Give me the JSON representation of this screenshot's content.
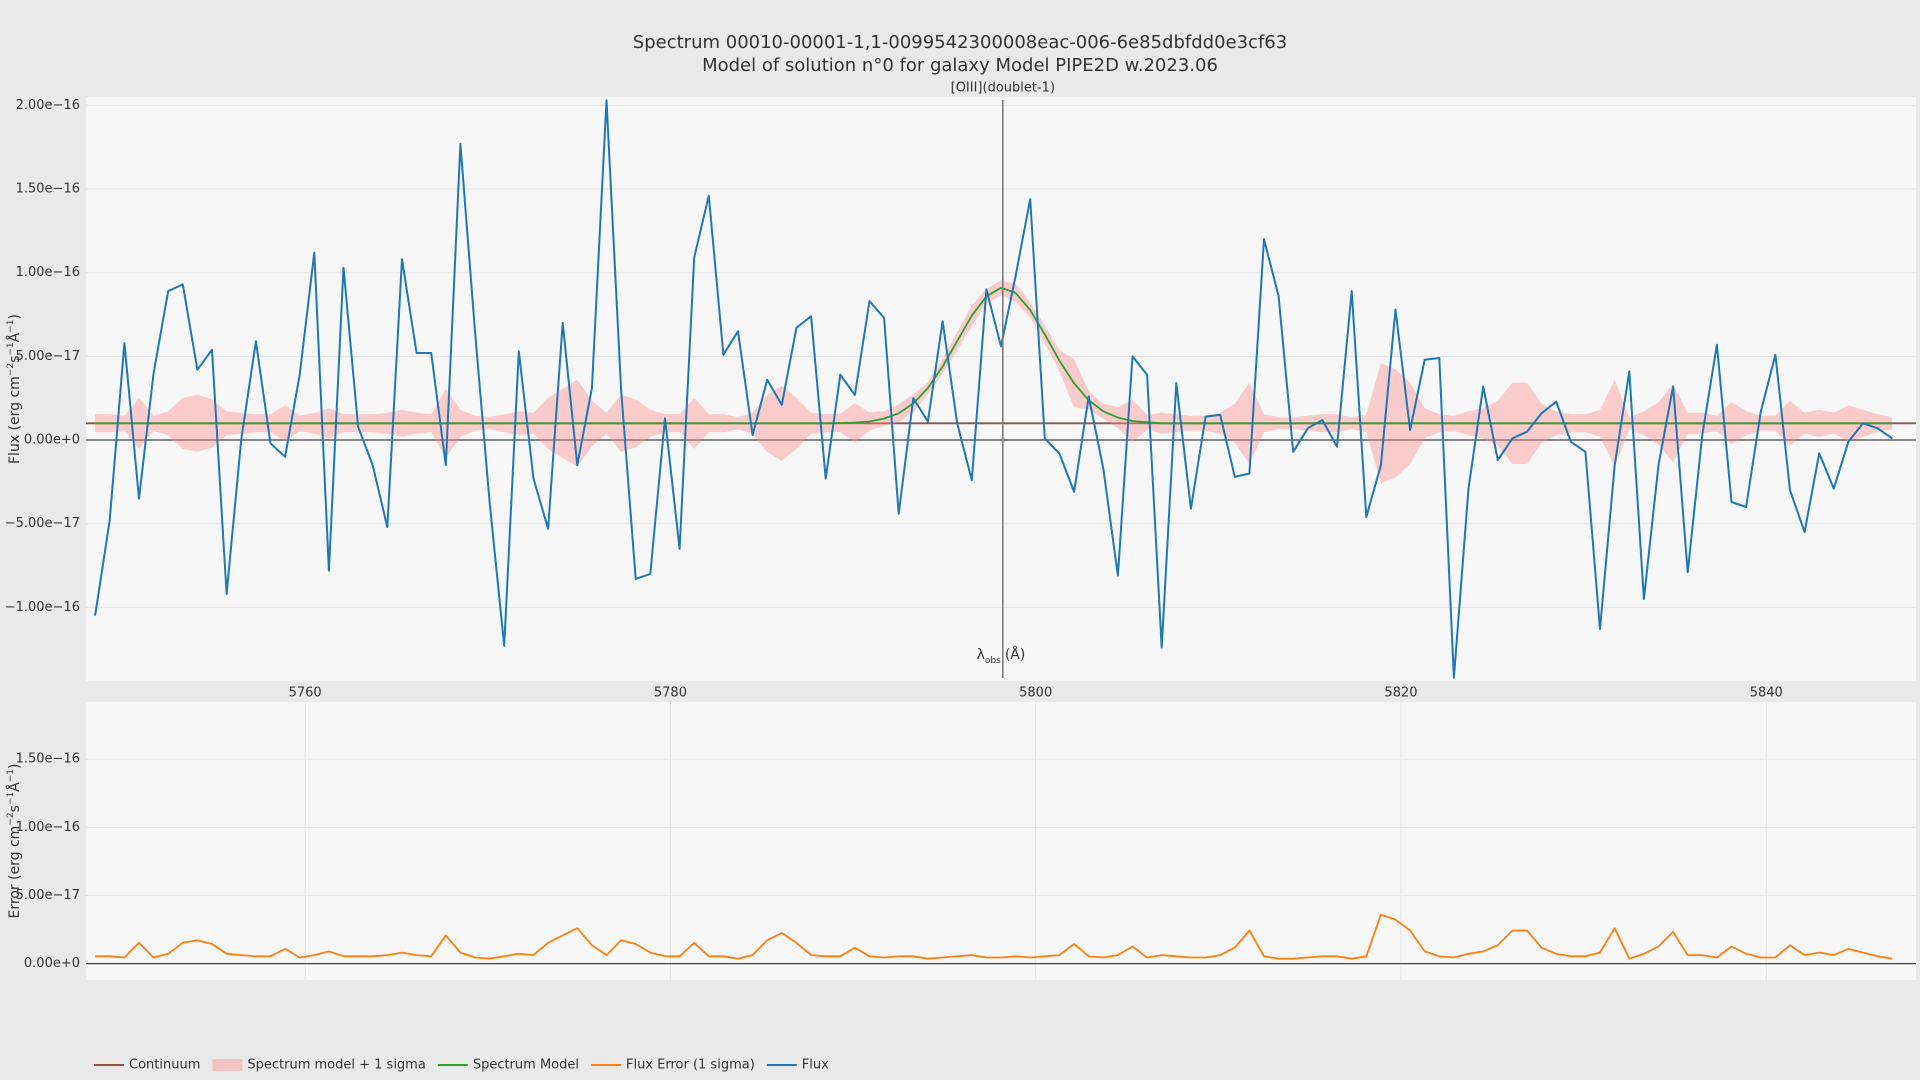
{
  "chart_data": {
    "type": "line",
    "title": "Spectrum 00010-00001-1,1-0099542300008eac-006-6e85dbfdd0e3cf63",
    "subtitle": "Model of solution n°0 for galaxy Model PIPE2D w.2023.06",
    "xlabel": "λ",
    "xlabel_sub": "obs",
    "xlabel_unit": "(Å)",
    "xlim": [
      5748.0,
      5848.2
    ],
    "xticks": [
      5760,
      5780,
      5800,
      5820,
      5840
    ],
    "legend": "bottom-left",
    "annotations": [
      {
        "x": 5798.2,
        "text": "[OIII](doublet-1)"
      }
    ],
    "x": [
      5748.5,
      5749.3,
      5750.1,
      5750.9,
      5751.7,
      5752.5,
      5753.3,
      5754.1,
      5754.9,
      5755.7,
      5756.5,
      5757.3,
      5758.1,
      5758.9,
      5759.7,
      5760.5,
      5761.3,
      5762.1,
      5762.9,
      5763.7,
      5764.5,
      5765.3,
      5766.1,
      5766.9,
      5767.7,
      5768.5,
      5769.3,
      5770.1,
      5770.9,
      5771.7,
      5772.5,
      5773.3,
      5774.1,
      5774.9,
      5775.7,
      5776.5,
      5777.3,
      5778.1,
      5778.9,
      5779.7,
      5780.5,
      5781.3,
      5782.1,
      5782.9,
      5783.7,
      5784.5,
      5785.3,
      5786.1,
      5786.9,
      5787.7,
      5788.5,
      5789.3,
      5790.1,
      5790.9,
      5791.7,
      5792.5,
      5793.3,
      5794.1,
      5794.9,
      5795.7,
      5796.5,
      5797.3,
      5798.1,
      5798.9,
      5799.7,
      5800.5,
      5801.3,
      5802.1,
      5802.9,
      5803.7,
      5804.5,
      5805.3,
      5806.1,
      5806.9,
      5807.7,
      5808.5,
      5809.3,
      5810.1,
      5810.9,
      5811.7,
      5812.5,
      5813.3,
      5814.1,
      5814.9,
      5815.7,
      5816.5,
      5817.3,
      5818.1,
      5818.9,
      5819.7,
      5820.5,
      5821.3,
      5822.1,
      5822.9,
      5823.7,
      5824.5,
      5825.3,
      5826.1,
      5826.9,
      5827.7,
      5828.5,
      5829.3,
      5830.1,
      5830.9,
      5831.7,
      5832.5,
      5833.3,
      5834.1,
      5834.9,
      5835.7,
      5836.5,
      5837.3,
      5838.1,
      5838.9,
      5839.7,
      5840.5,
      5841.3,
      5842.1,
      5842.9,
      5843.7,
      5844.5,
      5845.3,
      5846.1,
      5846.9
    ],
    "panels": [
      {
        "ylabel": [
          {
            "text": "Flux (erg cm"
          },
          {
            "text": "−2",
            "sup": true
          },
          {
            "text": "s"
          },
          {
            "text": "−1",
            "sup": true
          },
          {
            "text": "Å"
          },
          {
            "text": "−1",
            "sup": true
          },
          {
            "text": ")"
          }
        ],
        "ylim": [
          -1.44e-16,
          2.05e-16
        ],
        "yticks": [
          {
            "value": -1e-16,
            "label": "−1.00e−16"
          },
          {
            "value": -5e-17,
            "label": "−5.00e−17"
          },
          {
            "value": 0,
            "label": "0.00e+0"
          },
          {
            "value": 5e-17,
            "label": "5.00e−17"
          },
          {
            "value": 1e-16,
            "label": "1.00e−16"
          },
          {
            "value": 1.5e-16,
            "label": "1.50e−16"
          },
          {
            "value": 2e-16,
            "label": "2.00e−16"
          }
        ],
        "ygrid": true,
        "xgrid": false,
        "xticklabels": true,
        "series": [
          {
            "name": "Continuum",
            "kind": "continuum",
            "color": "#8c564b",
            "x": [
              5748.0,
              5848.2
            ],
            "values": [
              1e-17,
              1e-17
            ]
          },
          {
            "name": "Spectrum model + 1 sigma",
            "kind": "band",
            "color": "#ff8a8a"
          },
          {
            "name": "Spectrum Model",
            "kind": "model",
            "color": "#2ca02c",
            "values": [
              1e-17,
              1e-17,
              1e-17,
              1e-17,
              1e-17,
              1e-17,
              1e-17,
              1e-17,
              1e-17,
              1e-17,
              1e-17,
              1e-17,
              1e-17,
              1e-17,
              1e-17,
              1e-17,
              1e-17,
              1e-17,
              1e-17,
              1e-17,
              1e-17,
              1e-17,
              1e-17,
              1e-17,
              1e-17,
              1e-17,
              1e-17,
              1e-17,
              1e-17,
              1e-17,
              1e-17,
              1e-17,
              1e-17,
              1e-17,
              1e-17,
              1e-17,
              1e-17,
              1e-17,
              1e-17,
              1e-17,
              1e-17,
              1e-17,
              1e-17,
              1e-17,
              1e-17,
              1e-17,
              1e-17,
              1e-17,
              1e-17,
              1e-17,
              1e-17,
              1.02e-17,
              1.04e-17,
              1.11e-17,
              1.28e-17,
              1.6e-17,
              2.19e-17,
              3.11e-17,
              4.39e-17,
              5.91e-17,
              7.43e-17,
              8.59e-17,
              9.1e-17,
              8.79e-17,
              7.77e-17,
              6.31e-17,
              4.75e-17,
              3.39e-17,
              2.38e-17,
              1.72e-17,
              1.34e-17,
              1.14e-17,
              1.06e-17,
              1e-17,
              1e-17,
              1e-17,
              1e-17,
              1e-17,
              1e-17,
              1e-17,
              1e-17,
              1e-17,
              1e-17,
              1e-17,
              1e-17,
              1e-17,
              1e-17,
              1e-17,
              1e-17,
              1e-17,
              1e-17,
              1e-17,
              1e-17,
              1e-17,
              1e-17,
              1e-17,
              1e-17,
              1e-17,
              1e-17,
              1e-17,
              1e-17,
              1e-17,
              1e-17,
              1e-17,
              1e-17,
              1e-17,
              1e-17,
              1e-17,
              1e-17,
              1e-17,
              1e-17,
              1e-17,
              1e-17,
              1e-17,
              1e-17,
              1e-17,
              1e-17,
              1e-17,
              1e-17,
              1e-17,
              1e-17,
              1e-17,
              1e-17,
              1e-17
            ]
          },
          {
            "name": "Flux",
            "kind": "flux",
            "color": "#1f77b4",
            "values": [
              -1.05e-16,
              -4.8e-17,
              5.8e-17,
              -3.5e-17,
              4e-17,
              8.9e-17,
              9.3e-17,
              4.2e-17,
              5.4e-17,
              -9.2e-17,
              0,
              5.9e-17,
              -2e-18,
              -1e-17,
              3.9e-17,
              1.12e-16,
              -7.8e-17,
              1.03e-16,
              8e-18,
              -1.5e-17,
              -5.2e-17,
              1.08e-16,
              5.2e-17,
              5.2e-17,
              -1.5e-17,
              1.77e-16,
              6.5e-17,
              -3.7e-17,
              -1.23e-16,
              5.3e-17,
              -2.3e-17,
              -5.3e-17,
              7e-17,
              -1.5e-17,
              3.1e-17,
              2.03e-16,
              3e-17,
              -8.3e-17,
              -8e-17,
              1.3e-17,
              -6.5e-17,
              1.09e-16,
              1.46e-16,
              5.1e-17,
              6.5e-17,
              3e-18,
              3.6e-17,
              2.1e-17,
              6.7e-17,
              7.4e-17,
              -2.3e-17,
              3.9e-17,
              2.7e-17,
              8.3e-17,
              7.3e-17,
              -4.4e-17,
              2.5e-17,
              1.1e-17,
              7.1e-17,
              1e-17,
              -2.4e-17,
              9e-17,
              5.6e-17,
              9.8e-17,
              1.44e-16,
              1e-18,
              -8e-18,
              -3.1e-17,
              2.6e-17,
              -1.7e-17,
              -8.1e-17,
              5e-17,
              3.9e-17,
              -1.24e-16,
              3.4e-17,
              -4.1e-17,
              1.4e-17,
              1.5e-17,
              -2.2e-17,
              -2e-17,
              1.2e-16,
              8.6e-17,
              -7e-18,
              7e-18,
              1.2e-17,
              -4e-18,
              8.9e-17,
              -4.6e-17,
              -1.5e-17,
              7.8e-17,
              6e-18,
              4.8e-17,
              4.9e-17,
              -1.42e-16,
              -2.9e-17,
              3.2e-17,
              -1.2e-17,
              1e-18,
              5e-18,
              1.6e-17,
              2.3e-17,
              -1e-18,
              -7e-18,
              -1.13e-16,
              -1.5e-17,
              4.1e-17,
              -9.5e-17,
              -1.5e-17,
              3.2e-17,
              -7.9e-17,
              3e-18,
              5.7e-17,
              -3.7e-17,
              -4e-17,
              1.7e-17,
              5.1e-17,
              -3e-17,
              -5.5e-17,
              -8e-18,
              -2.9e-17,
              -1e-18,
              1e-17,
              7e-18,
              1e-18
            ]
          }
        ]
      },
      {
        "ylabel": [
          {
            "text": "Error (erg cm"
          },
          {
            "text": "−2",
            "sup": true
          },
          {
            "text": "s"
          },
          {
            "text": "−1",
            "sup": true
          },
          {
            "text": "Å"
          },
          {
            "text": "−1",
            "sup": true
          },
          {
            "text": ")"
          }
        ],
        "ylim": [
          -1.2e-17,
          1.92e-16
        ],
        "yticks": [
          {
            "value": 0,
            "label": "0.00e+0"
          },
          {
            "value": 5e-17,
            "label": "5.00e−17"
          },
          {
            "value": 1e-16,
            "label": "1.00e−16"
          },
          {
            "value": 1.5e-16,
            "label": "1.50e−16"
          }
        ],
        "ygrid": true,
        "xgrid": true,
        "xticklabels": false,
        "series": [
          {
            "name": "Flux Error (1 sigma)",
            "kind": "error",
            "color": "#ff7f0e",
            "values": [
              5.4e-18,
              5.4e-18,
              4.5e-18,
              1.53e-17,
              4.5e-18,
              7.2e-18,
              1.53e-17,
              1.71e-17,
              1.44e-17,
              7.2e-18,
              6.3e-18,
              5.4e-18,
              5.4e-18,
              1.08e-17,
              4.5e-18,
              6.3e-18,
              9e-18,
              5.4e-18,
              5.4e-18,
              5.4e-18,
              6.3e-18,
              8.1e-18,
              6.3e-18,
              5.4e-18,
              2.07e-17,
              8.1e-18,
              4.5e-18,
              3.6e-18,
              5.4e-18,
              7.2e-18,
              6.3e-18,
              1.53e-17,
              2.07e-17,
              2.6e-17,
              1.35e-17,
              6.3e-18,
              1.71e-17,
              1.44e-17,
              8.1e-18,
              5.4e-18,
              5.4e-18,
              1.53e-17,
              5.4e-18,
              5.4e-18,
              3.6e-18,
              6.3e-18,
              1.71e-17,
              2.25e-17,
              1.53e-17,
              6.3e-18,
              5.4e-18,
              5.4e-18,
              1.17e-17,
              5.4e-18,
              4.5e-18,
              5.4e-18,
              5.4e-18,
              3.6e-18,
              4.5e-18,
              5.4e-18,
              6.3e-18,
              4.5e-18,
              4.5e-18,
              5.4e-18,
              4.5e-18,
              5.4e-18,
              6.3e-18,
              1.44e-17,
              5.4e-18,
              4.5e-18,
              6.3e-18,
              1.26e-17,
              4.5e-18,
              6.3e-18,
              5.4e-18,
              4.5e-18,
              4.5e-18,
              6.3e-18,
              1.17e-17,
              2.43e-17,
              5.4e-18,
              3.6e-18,
              3.6e-18,
              4.5e-18,
              5.4e-18,
              5.4e-18,
              3.6e-18,
              5.4e-18,
              3.59e-17,
              3.23e-17,
              2.43e-17,
              9e-18,
              5.4e-18,
              4.5e-18,
              7.2e-18,
              9e-18,
              1.35e-17,
              2.43e-17,
              2.43e-17,
              1.17e-17,
              7.2e-18,
              5.4e-18,
              5.4e-18,
              8.1e-18,
              2.6e-17,
              3.6e-18,
              7.2e-18,
              1.26e-17,
              2.34e-17,
              6.3e-18,
              6.3e-18,
              4.5e-18,
              1.26e-17,
              7.2e-18,
              4.5e-18,
              4.5e-18,
              1.35e-17,
              6.3e-18,
              8.1e-18,
              6.3e-18,
              1.08e-17,
              8.1e-18,
              5.4e-18,
              3.6e-18
            ]
          }
        ]
      }
    ]
  }
}
